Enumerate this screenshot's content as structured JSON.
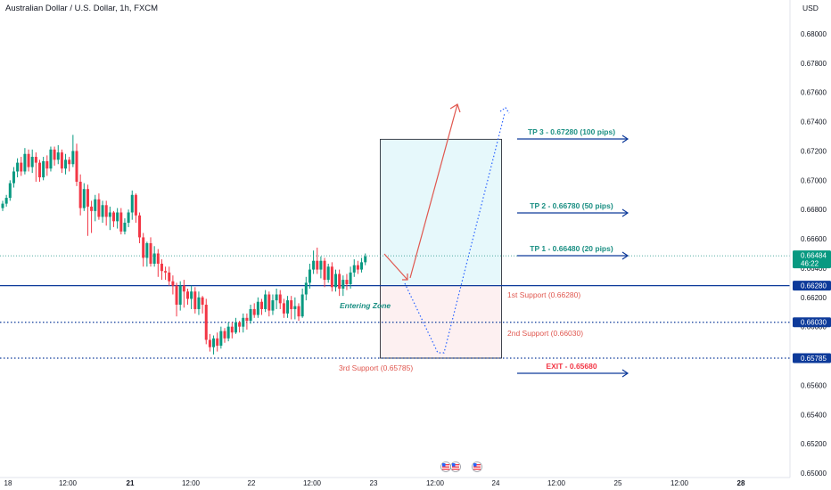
{
  "header": {
    "title": "Australian Dollar / U.S. Dollar, 1h, FXCM",
    "currency": "USD"
  },
  "colors": {
    "up": "#089981",
    "down": "#f23645",
    "level": "#0d3a9a",
    "teal": "#1a8f83",
    "red": "#e0574f",
    "annot_red": "#f23645",
    "tp_zone": "#e6f8fb",
    "sl_zone": "#fdf0f1"
  },
  "chart_data": {
    "type": "candlestick",
    "y_axis": {
      "min": 0.65,
      "max": 0.681,
      "ticks": [
        0.681,
        0.68,
        0.679,
        0.678,
        0.677,
        0.676,
        0.675,
        0.674,
        0.673,
        0.672,
        0.671,
        0.67,
        0.669,
        0.668,
        0.667,
        0.666,
        0.665,
        0.664,
        0.663,
        0.662,
        0.661,
        0.66,
        0.659,
        0.658,
        0.657,
        0.656,
        0.655,
        0.654,
        0.653,
        0.652,
        0.651,
        0.65
      ],
      "tick_labels": [
        "0.68000",
        "0.67800",
        "0.67600",
        "0.67400",
        "0.67200",
        "0.67000",
        "0.66800",
        "0.66600",
        "0.66400",
        "0.66200",
        "0.66000",
        "0.65800",
        "0.65600",
        "0.65400",
        "0.65200",
        "0.65000"
      ],
      "tick_values": [
        0.68,
        0.678,
        0.676,
        0.674,
        0.672,
        0.67,
        0.668,
        0.666,
        0.664,
        0.662,
        0.66,
        0.658,
        0.656,
        0.654,
        0.652,
        0.65
      ]
    },
    "x_axis": {
      "ticks": [
        "18",
        "12:00",
        "21",
        "12:00",
        "22",
        "12:00",
        "23",
        "12:00",
        "24",
        "12:00",
        "25",
        "12:00",
        "28"
      ],
      "bold": [
        false,
        false,
        true,
        false,
        false,
        false,
        false,
        false,
        false,
        false,
        false,
        false,
        true
      ]
    },
    "candles": [
      [
        0.6681,
        0.6684,
        0.6679,
        0.6686
      ],
      [
        0.6684,
        0.6688,
        0.6682,
        0.669
      ],
      [
        0.6688,
        0.6698,
        0.6686,
        0.67
      ],
      [
        0.6698,
        0.6706,
        0.6695,
        0.6709
      ],
      [
        0.6706,
        0.6712,
        0.6702,
        0.6715
      ],
      [
        0.6712,
        0.6706,
        0.6703,
        0.6716
      ],
      [
        0.6706,
        0.6718,
        0.6704,
        0.6722
      ],
      [
        0.6718,
        0.6709,
        0.6706,
        0.6721
      ],
      [
        0.6709,
        0.6716,
        0.6705,
        0.6721
      ],
      [
        0.6716,
        0.6712,
        0.6699,
        0.6719
      ],
      [
        0.6712,
        0.6702,
        0.6699,
        0.6714
      ],
      [
        0.6702,
        0.6713,
        0.67,
        0.6716
      ],
      [
        0.6713,
        0.6708,
        0.6703,
        0.6717
      ],
      [
        0.6708,
        0.6721,
        0.6706,
        0.6723
      ],
      [
        0.6721,
        0.6714,
        0.671,
        0.6723
      ],
      [
        0.6714,
        0.6719,
        0.6711,
        0.6724
      ],
      [
        0.6719,
        0.6708,
        0.6705,
        0.6721
      ],
      [
        0.6708,
        0.6714,
        0.6704,
        0.6718
      ],
      [
        0.6714,
        0.6711,
        0.6706,
        0.6716
      ],
      [
        0.6711,
        0.672,
        0.6709,
        0.6731
      ],
      [
        0.672,
        0.6699,
        0.6696,
        0.6725
      ],
      [
        0.6699,
        0.6681,
        0.6676,
        0.6704
      ],
      [
        0.6681,
        0.6694,
        0.6679,
        0.6698
      ],
      [
        0.6694,
        0.6682,
        0.6662,
        0.6697
      ],
      [
        0.6682,
        0.6679,
        0.6664,
        0.6686
      ],
      [
        0.6679,
        0.6687,
        0.6672,
        0.669
      ],
      [
        0.6687,
        0.6675,
        0.6673,
        0.6691
      ],
      [
        0.6675,
        0.6683,
        0.6671,
        0.6686
      ],
      [
        0.6683,
        0.6675,
        0.6669,
        0.6686
      ],
      [
        0.6675,
        0.6678,
        0.6666,
        0.6682
      ],
      [
        0.6678,
        0.6672,
        0.6668,
        0.6679
      ],
      [
        0.6672,
        0.6678,
        0.6667,
        0.6681
      ],
      [
        0.6678,
        0.6665,
        0.6663,
        0.6681
      ],
      [
        0.6665,
        0.6671,
        0.6663,
        0.6674
      ],
      [
        0.6671,
        0.6678,
        0.6668,
        0.668
      ],
      [
        0.6678,
        0.669,
        0.6673,
        0.6693
      ],
      [
        0.669,
        0.6676,
        0.6671,
        0.6691
      ],
      [
        0.6676,
        0.6661,
        0.6657,
        0.6678
      ],
      [
        0.6661,
        0.6647,
        0.6641,
        0.6664
      ],
      [
        0.6647,
        0.6657,
        0.6641,
        0.6658
      ],
      [
        0.6657,
        0.6643,
        0.6641,
        0.6661
      ],
      [
        0.6643,
        0.665,
        0.6641,
        0.6655
      ],
      [
        0.665,
        0.6643,
        0.6634,
        0.6653
      ],
      [
        0.6643,
        0.6638,
        0.6632,
        0.6646
      ],
      [
        0.6638,
        0.6637,
        0.6632,
        0.6641
      ],
      [
        0.6637,
        0.6631,
        0.6628,
        0.6641
      ],
      [
        0.6631,
        0.6628,
        0.6622,
        0.6635
      ],
      [
        0.6628,
        0.6615,
        0.6607,
        0.663
      ],
      [
        0.6615,
        0.6628,
        0.6611,
        0.6631
      ],
      [
        0.6628,
        0.6624,
        0.6613,
        0.6632
      ],
      [
        0.6624,
        0.6619,
        0.6615,
        0.6626
      ],
      [
        0.6619,
        0.6624,
        0.6612,
        0.6628
      ],
      [
        0.6624,
        0.6612,
        0.6609,
        0.6627
      ],
      [
        0.6612,
        0.662,
        0.6608,
        0.6624
      ],
      [
        0.662,
        0.6615,
        0.6609,
        0.6621
      ],
      [
        0.6615,
        0.6591,
        0.6588,
        0.6619
      ],
      [
        0.6591,
        0.6586,
        0.6583,
        0.6595
      ],
      [
        0.6586,
        0.6592,
        0.6581,
        0.6594
      ],
      [
        0.6592,
        0.6587,
        0.6583,
        0.6596
      ],
      [
        0.6587,
        0.6597,
        0.6585,
        0.66
      ],
      [
        0.6597,
        0.6592,
        0.6589,
        0.6599
      ],
      [
        0.6592,
        0.66,
        0.659,
        0.6603
      ],
      [
        0.66,
        0.6596,
        0.6592,
        0.6603
      ],
      [
        0.6596,
        0.6603,
        0.6595,
        0.6606
      ],
      [
        0.6603,
        0.66,
        0.6596,
        0.6604
      ],
      [
        0.66,
        0.6606,
        0.6596,
        0.6609
      ],
      [
        0.6606,
        0.6604,
        0.6598,
        0.6609
      ],
      [
        0.6604,
        0.6612,
        0.6602,
        0.6615
      ],
      [
        0.6612,
        0.6608,
        0.6606,
        0.6616
      ],
      [
        0.6608,
        0.6617,
        0.6606,
        0.662
      ],
      [
        0.6617,
        0.6612,
        0.6608,
        0.6619
      ],
      [
        0.6612,
        0.6622,
        0.661,
        0.6625
      ],
      [
        0.6622,
        0.6611,
        0.6607,
        0.6624
      ],
      [
        0.6611,
        0.6618,
        0.6608,
        0.6622
      ],
      [
        0.6618,
        0.6622,
        0.6612,
        0.6626
      ],
      [
        0.6622,
        0.6616,
        0.6612,
        0.6625
      ],
      [
        0.6616,
        0.6609,
        0.6606,
        0.6619
      ],
      [
        0.6609,
        0.6618,
        0.6606,
        0.6621
      ],
      [
        0.6618,
        0.6612,
        0.6605,
        0.6621
      ],
      [
        0.6612,
        0.6614,
        0.6605,
        0.662
      ],
      [
        0.6614,
        0.6607,
        0.6604,
        0.6616
      ],
      [
        0.6607,
        0.6622,
        0.6606,
        0.6626
      ],
      [
        0.6622,
        0.663,
        0.6618,
        0.6634
      ],
      [
        0.663,
        0.6639,
        0.6626,
        0.6643
      ],
      [
        0.6639,
        0.6645,
        0.6636,
        0.6652
      ],
      [
        0.6645,
        0.6639,
        0.6636,
        0.6654
      ],
      [
        0.6639,
        0.6645,
        0.6633,
        0.6648
      ],
      [
        0.6645,
        0.6632,
        0.6627,
        0.6647
      ],
      [
        0.6632,
        0.6641,
        0.663,
        0.6643
      ],
      [
        0.6641,
        0.6627,
        0.6624,
        0.6644
      ],
      [
        0.6627,
        0.6636,
        0.6624,
        0.6639
      ],
      [
        0.6636,
        0.6626,
        0.6621,
        0.6639
      ],
      [
        0.6626,
        0.6632,
        0.6621,
        0.6635
      ],
      [
        0.6632,
        0.6629,
        0.6625,
        0.6636
      ],
      [
        0.6629,
        0.6637,
        0.6626,
        0.6641
      ],
      [
        0.6637,
        0.6642,
        0.6634,
        0.6646
      ],
      [
        0.6642,
        0.6639,
        0.6636,
        0.6645
      ],
      [
        0.6639,
        0.6644,
        0.6637,
        0.6647
      ],
      [
        0.6644,
        0.6648,
        0.6642,
        0.665
      ]
    ],
    "last_price": {
      "value": "0.66484",
      "countdown": "46:22"
    },
    "levels": [
      {
        "price": 0.6628,
        "label": "0.66280",
        "style": "solid"
      },
      {
        "price": 0.6603,
        "label": "0.66030",
        "style": "dotted"
      },
      {
        "price": 0.65785,
        "label": "0.65785",
        "style": "dotted"
      }
    ],
    "annotations": {
      "tp3": "TP 3 - 0.67280 (100 pips)",
      "tp2": "TP 2 - 0.66780 (50 pips)",
      "tp1": "TP 1 - 0.66480 (20 pips)",
      "support1": "1st Support (0.66280)",
      "support2": "2nd Support (0.66030)",
      "support3": "3rd Support (0.65785)",
      "exit": "EXIT - 0.65680",
      "entering": "Entering Zone"
    },
    "trade_box": {
      "top": 0.6728,
      "entry": 0.6628,
      "bottom": 0.65785
    }
  }
}
